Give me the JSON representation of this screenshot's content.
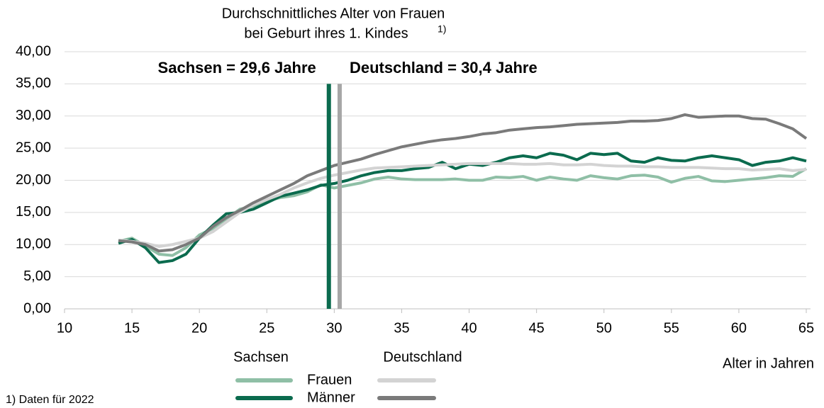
{
  "chart_data": {
    "type": "line",
    "title": [
      "Durchschnittliches Alter von Frauen",
      "bei Geburt ihres 1. Kindes"
    ],
    "title_note": "1)",
    "xlabel": "Alter in Jahren",
    "footnote": "1) Daten für 2022",
    "xlim": [
      10,
      65
    ],
    "xticks": [
      10,
      15,
      20,
      25,
      30,
      35,
      40,
      45,
      50,
      55,
      60,
      65
    ],
    "ylim": [
      0,
      40
    ],
    "yticks": [
      {
        "value": 0,
        "label": "0,00"
      },
      {
        "value": 5,
        "label": "5,00"
      },
      {
        "value": 10,
        "label": "10,00"
      },
      {
        "value": 15,
        "label": "15,00"
      },
      {
        "value": 20,
        "label": "20,00"
      },
      {
        "value": 25,
        "label": "25,00"
      },
      {
        "value": 30,
        "label": "30,00"
      },
      {
        "value": 35,
        "label": "35,00"
      },
      {
        "value": 40,
        "label": "40,00"
      }
    ],
    "grid": true,
    "x": [
      14,
      15,
      16,
      17,
      18,
      19,
      20,
      21,
      22,
      23,
      24,
      25,
      26,
      27,
      28,
      29,
      30,
      31,
      32,
      33,
      34,
      35,
      36,
      37,
      38,
      39,
      40,
      41,
      42,
      43,
      44,
      45,
      46,
      47,
      48,
      49,
      50,
      51,
      52,
      53,
      54,
      55,
      56,
      57,
      58,
      59,
      60,
      61,
      62,
      63,
      64,
      65
    ],
    "series": [
      {
        "name": "Frauen",
        "group": "Sachsen",
        "color": "#8fbfa6",
        "values": [
          10.5,
          11,
          9.8,
          8.5,
          8.3,
          9.5,
          11.5,
          12.5,
          14,
          15.5,
          16,
          16.8,
          17.3,
          17.6,
          18.2,
          19.3,
          18.8,
          19.2,
          19.6,
          20.2,
          20.5,
          20.2,
          20.1,
          20.1,
          20.1,
          20.2,
          20,
          20,
          20.5,
          20.4,
          20.6,
          20,
          20.5,
          20.2,
          20,
          20.7,
          20.4,
          20.2,
          20.7,
          20.8,
          20.5,
          19.7,
          20.3,
          20.6,
          19.9,
          19.8,
          20,
          20.2,
          20.4,
          20.7,
          20.6,
          21.8
        ]
      },
      {
        "name": "Männer",
        "group": "Sachsen",
        "color": "#0b6b4e",
        "values": [
          10.2,
          10.8,
          9.5,
          7.2,
          7.5,
          8.5,
          11,
          13,
          14.8,
          15,
          15.5,
          16.5,
          17.5,
          18,
          18.5,
          19.2,
          19.5,
          20,
          20.7,
          21.2,
          21.5,
          21.5,
          21.8,
          22,
          22.8,
          21.8,
          22.5,
          22.3,
          22.8,
          23.5,
          23.8,
          23.5,
          24.2,
          23.9,
          23.2,
          24.2,
          24,
          24.2,
          23,
          22.8,
          23.5,
          23.1,
          23,
          23.5,
          23.8,
          23.5,
          23.2,
          22.3,
          22.8,
          23,
          23.5,
          23
        ]
      },
      {
        "name": "Frauen",
        "group": "Deutschland",
        "color": "#d3d3d3",
        "values": [
          10.7,
          10.5,
          10.2,
          9.7,
          10,
          10.5,
          11,
          12,
          13.5,
          15,
          16.2,
          17,
          17.8,
          18.8,
          19.6,
          20.3,
          20.8,
          21.2,
          21.6,
          21.9,
          22,
          22.1,
          22.2,
          22.3,
          22.4,
          22.5,
          22.6,
          22.6,
          22.6,
          22.6,
          22.5,
          22.5,
          22.6,
          22.4,
          22.4,
          22.5,
          22.3,
          22.2,
          22.2,
          22.1,
          22.1,
          22,
          22,
          22,
          21.9,
          21.8,
          21.8,
          21.6,
          21.7,
          21.8,
          21.5,
          21.7
        ]
      },
      {
        "name": "Männer",
        "group": "Deutschland",
        "color": "#7a7a7a",
        "values": [
          10.6,
          10.4,
          10,
          9,
          9.2,
          10,
          11,
          12.8,
          14.2,
          15.3,
          16.5,
          17.5,
          18.5,
          19.5,
          20.7,
          21.5,
          22.3,
          22.8,
          23.3,
          24,
          24.6,
          25.2,
          25.6,
          26,
          26.3,
          26.5,
          26.8,
          27.2,
          27.4,
          27.8,
          28,
          28.2,
          28.3,
          28.5,
          28.7,
          28.8,
          28.9,
          29,
          29.2,
          29.2,
          29.3,
          29.6,
          30.2,
          29.8,
          29.9,
          30,
          30,
          29.6,
          29.5,
          28.8,
          28,
          26.5
        ]
      }
    ],
    "annotations": [
      {
        "label": "Sachsen = 29,6 Jahre",
        "value": 29.6,
        "color": "#0b6b4e"
      },
      {
        "label": "Deutschland = 30,4 Jahre",
        "value": 30.4,
        "color": "#a6a6a6"
      }
    ]
  }
}
